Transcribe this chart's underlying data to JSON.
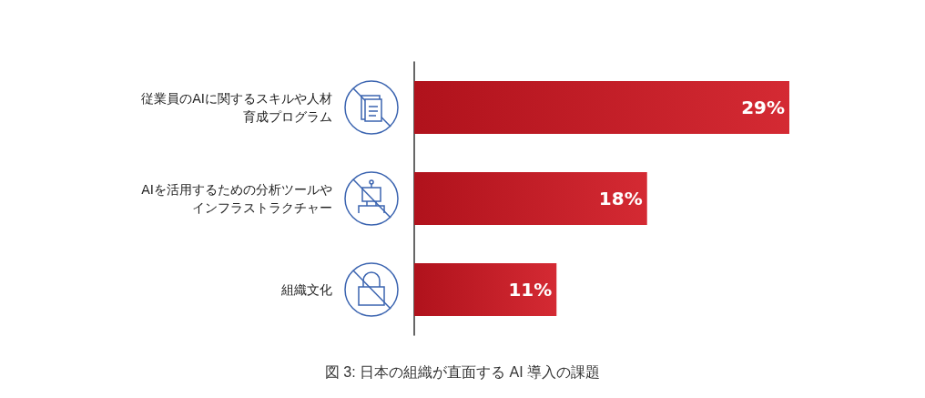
{
  "chart_data": {
    "type": "bar",
    "orientation": "horizontal",
    "categories": [
      "従業員のAIに関するスキルや人材育成プログラム",
      "AIを活用するための分析ツールやインフラストラクチャー",
      "組織文化"
    ],
    "values": [
      29,
      18,
      11
    ],
    "value_labels": [
      "29%",
      "18%",
      "11%"
    ],
    "color": "#d42a33",
    "grid": false,
    "annotations": [
      "図 3: 日本の組織が直面する AI 導入の課題"
    ]
  }
}
